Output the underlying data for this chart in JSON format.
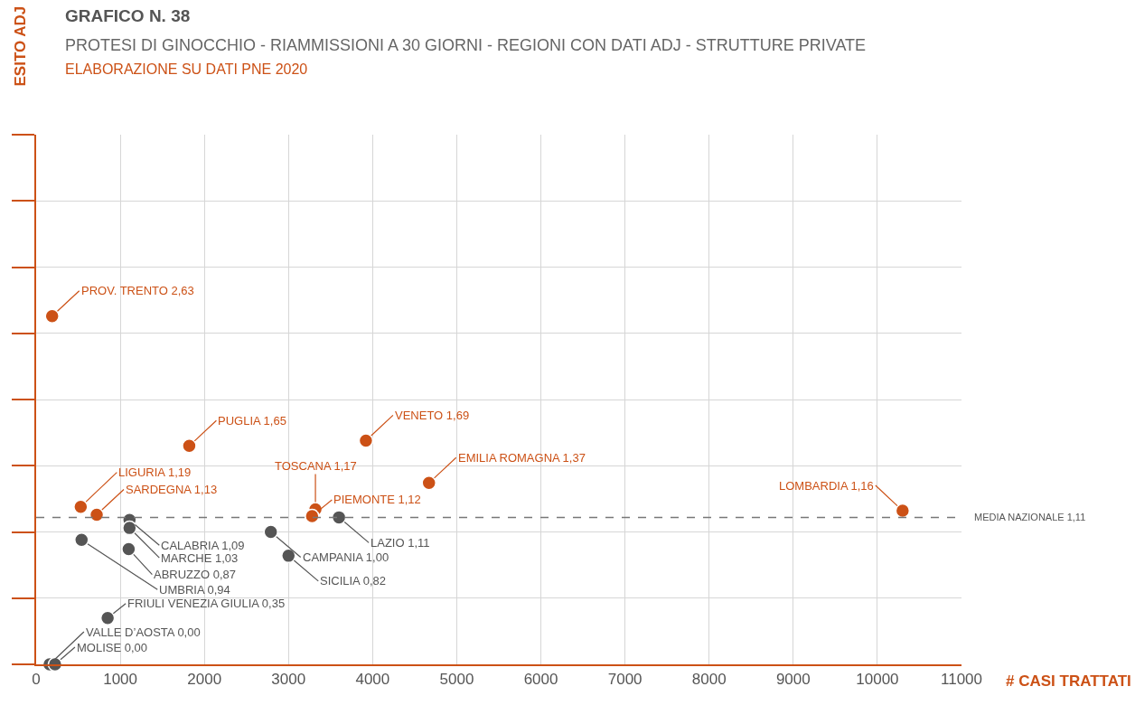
{
  "chart_data": {
    "type": "scatter",
    "title": "GRAFICO N. 38",
    "subtitle": "PROTESI DI GINOCCHIO - RIAMMISSIONI A 30 GIORNI - REGIONI CON DATI ADJ - STRUTTURE PRIVATE",
    "annotations": [
      "ELABORAZIONE SU DATI PNE 2020"
    ],
    "xlabel": "# CASI TRATTATI",
    "ylabel": "ESITO ADJ",
    "xlim": [
      0,
      11000
    ],
    "xticks": [
      0,
      1000,
      2000,
      3000,
      4000,
      5000,
      6000,
      7000,
      8000,
      9000,
      10000,
      11000
    ],
    "ylim": [
      0,
      4
    ],
    "tick_labels": "x",
    "grid": true,
    "marker": "circle",
    "series": [
      {
        "color": "#cc5116",
        "x": [
          190,
          1820,
          3920,
          4670,
          10300,
          530,
          720,
          3320,
          3280
        ],
        "values": [
          2.63,
          1.65,
          1.69,
          1.37,
          1.16,
          1.19,
          1.13,
          1.17,
          1.12
        ],
        "value_labels": [
          "PROV. TRENTO 2,63",
          "PUGLIA 1,65",
          "VENETO 1,69",
          "EMILIA ROMAGNA 1,37",
          "LOMBARDIA 1,16",
          "LIGURIA 1,19",
          "SARDEGNA 1,13",
          "TOSCANA 1,17",
          "PIEMONTE 1,12"
        ]
      },
      {
        "color": "#555555",
        "x": [
          1110,
          1110,
          1100,
          540,
          850,
          160,
          225,
          2790,
          3000,
          3600
        ],
        "values": [
          1.09,
          1.03,
          0.87,
          0.94,
          0.35,
          0.0,
          0.0,
          1.0,
          0.82,
          1.11
        ],
        "value_labels": [
          "CALABRIA 1,09",
          "MARCHE 1,03",
          "ABRUZZO 0,87",
          "UMBRIA 0,94",
          "FRIULI VENEZIA GIULIA 0,35",
          "VALLE D’AOSTA 0,00",
          "MOLISE 0,00",
          "CAMPANIA 1,00",
          "SICILIA 0,82",
          "LAZIO 1,11"
        ]
      }
    ],
    "ref_lines": [
      {
        "axis": "y",
        "value": 1.11,
        "label": "MEDIA NAZIONALE 1,11",
        "color": "#777777",
        "line_style": "dashed"
      }
    ]
  }
}
